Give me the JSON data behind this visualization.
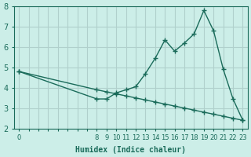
{
  "xlabel": "Humidex (Indice chaleur)",
  "ylabel": "",
  "bg_color": "#cceee8",
  "line_color": "#1a6b5a",
  "grid_color": "#b0d0cc",
  "hours": [
    0,
    8,
    9,
    10,
    11,
    12,
    13,
    14,
    15,
    16,
    17,
    18,
    19,
    20,
    21,
    22,
    23
  ],
  "humidex": [
    4.8,
    3.45,
    3.45,
    3.75,
    3.9,
    4.05,
    4.7,
    5.45,
    6.35,
    5.8,
    6.2,
    6.65,
    7.8,
    6.8,
    4.9,
    3.45,
    2.4
  ],
  "trend": [
    4.8,
    3.9,
    3.8,
    3.7,
    3.6,
    3.5,
    3.4,
    3.3,
    3.2,
    3.1,
    3.0,
    2.9,
    2.8,
    2.7,
    2.6,
    2.5,
    2.4
  ],
  "ylim": [
    2,
    8
  ],
  "yticks": [
    2,
    3,
    4,
    5,
    6,
    7,
    8
  ],
  "marker": "+"
}
